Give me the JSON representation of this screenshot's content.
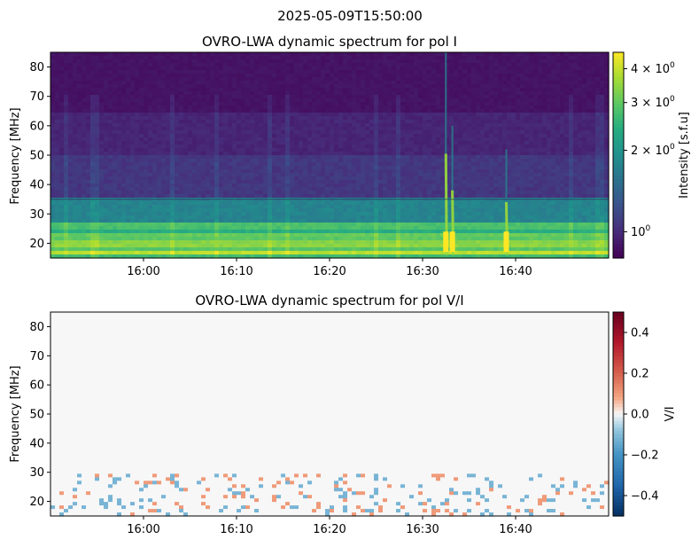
{
  "figure": {
    "suptitle": "2025-05-09T15:50:00"
  },
  "chart_data": [
    {
      "type": "heatmap",
      "title": "OVRO-LWA dynamic spectrum for pol I",
      "xlabel": "",
      "ylabel": "Frequency [MHz]",
      "x_ticks": [
        "16:00",
        "16:10",
        "16:20",
        "16:30",
        "16:40"
      ],
      "x_tick_minutes": [
        10,
        20,
        30,
        40,
        50
      ],
      "xlim_minutes": [
        0,
        60
      ],
      "x_origin_time": "15:50",
      "y_ticks": [
        20,
        30,
        40,
        50,
        60,
        70,
        80
      ],
      "ylim": [
        15,
        85
      ],
      "colormap": "viridis",
      "colorbar": {
        "label": "Intensity [s.f.u]",
        "scale": "log",
        "range": [
          0.8,
          4.6
        ],
        "ticks": [
          {
            "value": 1,
            "base": "10",
            "exp": "0",
            "prefix": ""
          },
          {
            "value": 2,
            "base": "10",
            "exp": "0",
            "prefix": "2 × "
          },
          {
            "value": 3,
            "base": "10",
            "exp": "0",
            "prefix": "3 × "
          },
          {
            "value": 4,
            "base": "10",
            "exp": "0",
            "prefix": "4 × "
          }
        ]
      },
      "features": {
        "horizontal_line_freq_mhz": 35,
        "bursts": [
          {
            "time_minutes": 42.5,
            "freq_low": 16,
            "freq_high": 85,
            "peak": 4.5
          },
          {
            "time_minutes": 43.2,
            "freq_low": 16,
            "freq_high": 60,
            "peak": 3.6
          },
          {
            "time_minutes": 49.0,
            "freq_low": 16,
            "freq_high": 52,
            "peak": 3.8
          }
        ]
      }
    },
    {
      "type": "heatmap",
      "title": "OVRO-LWA dynamic spectrum for pol V/I",
      "xlabel": "",
      "ylabel": "Frequency [MHz]",
      "x_ticks": [
        "16:00",
        "16:10",
        "16:20",
        "16:30",
        "16:40"
      ],
      "x_tick_minutes": [
        10,
        20,
        30,
        40,
        50
      ],
      "xlim_minutes": [
        0,
        60
      ],
      "x_origin_time": "15:50",
      "y_ticks": [
        20,
        30,
        40,
        50,
        60,
        70,
        80
      ],
      "ylim": [
        15,
        85
      ],
      "colormap": "RdBu_r",
      "colorbar": {
        "label": "V/I",
        "scale": "linear",
        "range": [
          -0.5,
          0.5
        ],
        "ticks": [
          {
            "value": 0.4,
            "label": "0.4"
          },
          {
            "value": 0.2,
            "label": "0.2"
          },
          {
            "value": 0.0,
            "label": "0.0"
          },
          {
            "value": -0.2,
            "label": "−0.2"
          },
          {
            "value": -0.4,
            "label": "−0.4"
          }
        ]
      }
    }
  ]
}
